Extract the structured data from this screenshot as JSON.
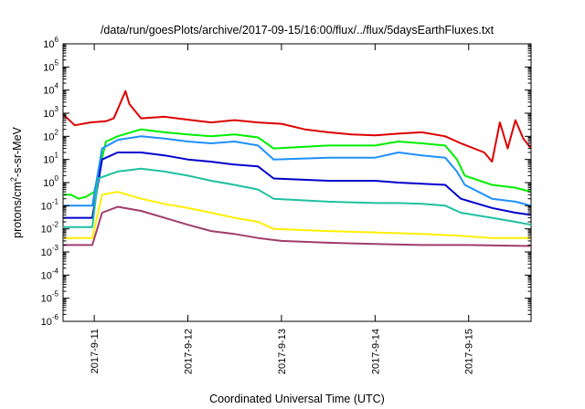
{
  "chart_data": {
    "type": "line",
    "title": "/data/run/goesPlots/archive/2017-09-15/16:00/flux/../flux/5daysEarthFluxes.txt",
    "xlabel": "Coordinated Universal Time (UTC)",
    "ylabel_parts": {
      "base": "protons/cm",
      "sup": "2",
      "rest": "-s-sr-MeV"
    },
    "yscale": "log",
    "ylim_exp": [
      -6,
      6
    ],
    "y_tick_labels": [
      {
        "exp": -6,
        "base": "10",
        "sup": "-6"
      },
      {
        "exp": -5,
        "base": "10",
        "sup": "-5"
      },
      {
        "exp": -4,
        "base": "10",
        "sup": "-4"
      },
      {
        "exp": -3,
        "base": "10",
        "sup": "-3"
      },
      {
        "exp": -2,
        "base": "10",
        "sup": "-2"
      },
      {
        "exp": -1,
        "base": "10",
        "sup": "-1"
      },
      {
        "exp": 0,
        "base": "10",
        "sup": "0"
      },
      {
        "exp": 1,
        "base": "10",
        "sup": "1"
      },
      {
        "exp": 2,
        "base": "10",
        "sup": "2"
      },
      {
        "exp": 3,
        "base": "10",
        "sup": "3"
      },
      {
        "exp": 4,
        "base": "10",
        "sup": "4"
      },
      {
        "exp": 5,
        "base": "10",
        "sup": "5"
      },
      {
        "exp": 6,
        "base": "10",
        "sup": "6"
      }
    ],
    "xlim": [
      "2017-09-10 16:00",
      "2017-09-15 16:00"
    ],
    "x_ticks": [
      {
        "time": "2017-09-11 00:00",
        "label": "2017-9-11"
      },
      {
        "time": "2017-09-12 00:00",
        "label": "2017-9-12"
      },
      {
        "time": "2017-09-13 00:00",
        "label": "2017-9-13"
      },
      {
        "time": "2017-09-14 00:00",
        "label": "2017-9-14"
      },
      {
        "time": "2017-09-15 00:00",
        "label": "2017-9-15"
      }
    ],
    "grid": false,
    "series": [
      {
        "color": "#dd0000",
        "x": [
          "2017-09-10 16:00",
          "2017-09-10 19:00",
          "2017-09-10 23:00",
          "2017-09-11 03:00",
          "2017-09-11 05:00",
          "2017-09-11 08:00",
          "2017-09-11 09:00",
          "2017-09-11 12:00",
          "2017-09-11 18:00",
          "2017-09-12 01:00",
          "2017-09-12 06:00",
          "2017-09-12 12:00",
          "2017-09-12 18:00",
          "2017-09-13 00:00",
          "2017-09-13 06:00",
          "2017-09-13 12:00",
          "2017-09-13 18:00",
          "2017-09-14 00:00",
          "2017-09-14 06:00",
          "2017-09-14 12:00",
          "2017-09-14 18:00",
          "2017-09-14 22:00",
          "2017-09-15 04:00",
          "2017-09-15 06:00",
          "2017-09-15 08:00",
          "2017-09-15 10:00",
          "2017-09-15 12:00",
          "2017-09-15 14:00",
          "2017-09-15 16:00"
        ],
        "y": [
          900,
          300,
          400,
          450,
          600,
          9000,
          2500,
          600,
          700,
          500,
          400,
          500,
          400,
          350,
          200,
          150,
          120,
          110,
          130,
          150,
          100,
          50,
          20,
          8,
          400,
          30,
          500,
          80,
          30
        ]
      },
      {
        "color": "#00ee00",
        "x": [
          "2017-09-10 16:00",
          "2017-09-10 18:00",
          "2017-09-10 20:00",
          "2017-09-10 22:00",
          "2017-09-11 00:00",
          "2017-09-11 03:00",
          "2017-09-11 06:00",
          "2017-09-11 12:00",
          "2017-09-11 18:00",
          "2017-09-12 00:00",
          "2017-09-12 06:00",
          "2017-09-12 12:00",
          "2017-09-12 18:00",
          "2017-09-12 22:00",
          "2017-09-13 12:00",
          "2017-09-14 00:00",
          "2017-09-14 06:00",
          "2017-09-14 12:00",
          "2017-09-14 18:00",
          "2017-09-14 21:00",
          "2017-09-14 23:00",
          "2017-09-15 06:00",
          "2017-09-15 12:00",
          "2017-09-15 16:00"
        ],
        "y": [
          0.3,
          0.3,
          0.2,
          0.25,
          0.4,
          60,
          100,
          200,
          150,
          120,
          100,
          120,
          90,
          30,
          40,
          40,
          60,
          50,
          40,
          10,
          2,
          0.8,
          0.6,
          0.4
        ]
      },
      {
        "color": "#1e90ff",
        "x": [
          "2017-09-10 16:00",
          "2017-09-10 22:00",
          "2017-09-10 23:30",
          "2017-09-11 02:00",
          "2017-09-11 06:00",
          "2017-09-11 12:00",
          "2017-09-11 18:00",
          "2017-09-12 00:00",
          "2017-09-12 06:00",
          "2017-09-12 12:00",
          "2017-09-12 18:00",
          "2017-09-12 22:00",
          "2017-09-13 12:00",
          "2017-09-14 00:00",
          "2017-09-14 06:00",
          "2017-09-14 12:00",
          "2017-09-14 18:00",
          "2017-09-14 21:00",
          "2017-09-14 23:00",
          "2017-09-15 06:00",
          "2017-09-15 12:00",
          "2017-09-15 16:00"
        ],
        "y": [
          0.1,
          0.1,
          0.1,
          30,
          70,
          100,
          80,
          60,
          50,
          60,
          40,
          10,
          12,
          12,
          20,
          15,
          12,
          3,
          0.8,
          0.2,
          0.15,
          0.1
        ]
      },
      {
        "color": "#0000cc",
        "x": [
          "2017-09-10 16:00",
          "2017-09-10 22:00",
          "2017-09-10 23:30",
          "2017-09-11 02:00",
          "2017-09-11 06:00",
          "2017-09-11 12:00",
          "2017-09-11 18:00",
          "2017-09-12 00:00",
          "2017-09-12 06:00",
          "2017-09-12 12:00",
          "2017-09-12 18:00",
          "2017-09-12 22:00",
          "2017-09-13 12:00",
          "2017-09-14 00:00",
          "2017-09-14 06:00",
          "2017-09-14 12:00",
          "2017-09-14 18:00",
          "2017-09-14 22:00",
          "2017-09-15 06:00",
          "2017-09-15 12:00",
          "2017-09-15 16:00"
        ],
        "y": [
          0.03,
          0.03,
          0.03,
          10,
          20,
          20,
          15,
          10,
          8,
          6,
          5,
          1.5,
          1.2,
          1.2,
          1.0,
          0.9,
          0.8,
          0.2,
          0.08,
          0.05,
          0.04
        ]
      },
      {
        "color": "#20c0a0",
        "x": [
          "2017-09-10 16:00",
          "2017-09-10 22:00",
          "2017-09-10 23:30",
          "2017-09-11 01:00",
          "2017-09-11 06:00",
          "2017-09-11 12:00",
          "2017-09-11 18:00",
          "2017-09-12 00:00",
          "2017-09-12 06:00",
          "2017-09-12 12:00",
          "2017-09-12 18:00",
          "2017-09-12 22:00",
          "2017-09-13 12:00",
          "2017-09-14 00:00",
          "2017-09-14 06:00",
          "2017-09-14 12:00",
          "2017-09-14 18:00",
          "2017-09-14 22:00",
          "2017-09-15 06:00",
          "2017-09-15 12:00",
          "2017-09-15 16:00"
        ],
        "y": [
          0.012,
          0.012,
          0.012,
          1.5,
          3,
          4,
          3,
          2,
          1.2,
          0.8,
          0.5,
          0.2,
          0.15,
          0.13,
          0.13,
          0.12,
          0.1,
          0.05,
          0.03,
          0.02,
          0.015
        ]
      },
      {
        "color": "#ffee00",
        "x": [
          "2017-09-10 16:00",
          "2017-09-10 22:00",
          "2017-09-10 23:30",
          "2017-09-11 02:00",
          "2017-09-11 06:00",
          "2017-09-11 12:00",
          "2017-09-11 18:00",
          "2017-09-12 00:00",
          "2017-09-12 06:00",
          "2017-09-12 12:00",
          "2017-09-12 18:00",
          "2017-09-12 22:00",
          "2017-09-13 12:00",
          "2017-09-14 00:00",
          "2017-09-14 12:00",
          "2017-09-14 22:00",
          "2017-09-15 06:00",
          "2017-09-15 16:00"
        ],
        "y": [
          0.004,
          0.004,
          0.004,
          0.3,
          0.4,
          0.2,
          0.12,
          0.08,
          0.05,
          0.03,
          0.02,
          0.01,
          0.008,
          0.007,
          0.006,
          0.005,
          0.004,
          0.004
        ]
      },
      {
        "color": "#a03c6c",
        "x": [
          "2017-09-10 16:00",
          "2017-09-10 22:00",
          "2017-09-10 23:30",
          "2017-09-11 02:00",
          "2017-09-11 06:00",
          "2017-09-11 12:00",
          "2017-09-11 18:00",
          "2017-09-12 00:00",
          "2017-09-12 06:00",
          "2017-09-12 12:00",
          "2017-09-12 18:00",
          "2017-09-13 00:00",
          "2017-09-13 12:00",
          "2017-09-14 00:00",
          "2017-09-14 12:00",
          "2017-09-15 00:00",
          "2017-09-15 16:00"
        ],
        "y": [
          0.002,
          0.002,
          0.002,
          0.05,
          0.09,
          0.06,
          0.03,
          0.015,
          0.008,
          0.006,
          0.004,
          0.003,
          0.0025,
          0.0022,
          0.002,
          0.002,
          0.0018
        ]
      }
    ]
  }
}
